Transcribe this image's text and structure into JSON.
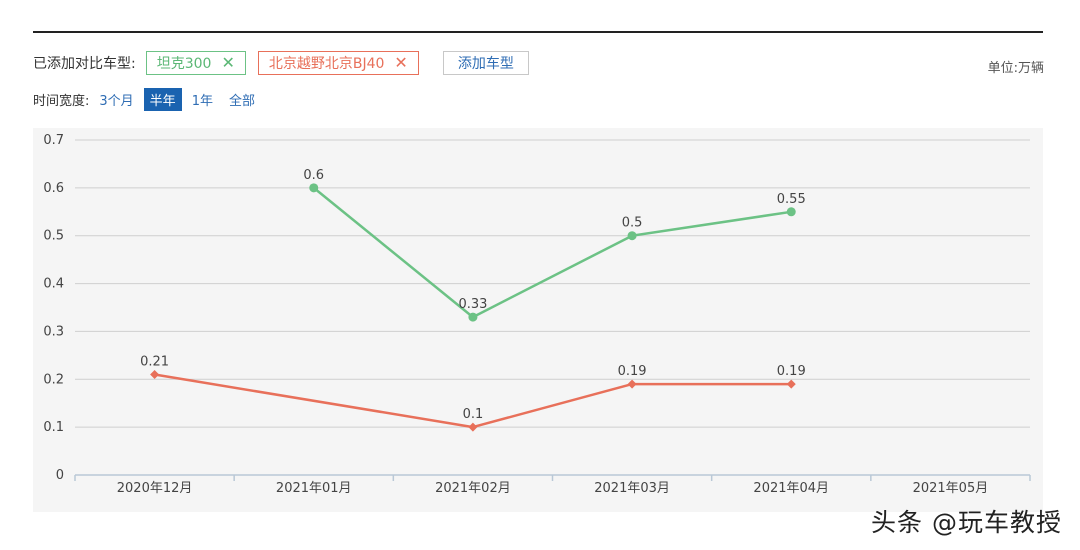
{
  "filters": {
    "added_label": "已添加对比车型:",
    "tags": [
      {
        "label": "坦克300",
        "close": "✕",
        "color": "#6cc285"
      },
      {
        "label": "北京越野北京BJ40",
        "close": "✕",
        "color": "#e8705a"
      }
    ],
    "add_button": "添加车型",
    "unit_label": "单位:万辆"
  },
  "time_range": {
    "label": "时间宽度:",
    "options": [
      "3个月",
      "半年",
      "1年",
      "全部"
    ],
    "selected": "半年"
  },
  "chart_data": {
    "type": "line",
    "categories": [
      "2020年12月",
      "2021年01月",
      "2021年02月",
      "2021年03月",
      "2021年04月",
      "2021年05月"
    ],
    "ylim": [
      0,
      0.7
    ],
    "yticks": [
      "0",
      "0.1",
      "0.2",
      "0.3",
      "0.4",
      "0.5",
      "0.6",
      "0.7"
    ],
    "grid": true,
    "series": [
      {
        "name": "坦克300",
        "color": "#6cc285",
        "marker": "circle",
        "values": [
          null,
          0.6,
          0.33,
          0.5,
          0.55,
          null
        ],
        "labels": [
          null,
          "0.6",
          "0.33",
          "0.5",
          "0.55",
          null
        ]
      },
      {
        "name": "北京越野北京BJ40",
        "color": "#e8705a",
        "marker": "diamond",
        "values": [
          0.21,
          null,
          0.1,
          0.19,
          0.19,
          null
        ],
        "labels": [
          "0.21",
          null,
          "0.1",
          "0.19",
          "0.19",
          null
        ]
      }
    ]
  },
  "watermark": "头条 @玩车教授"
}
